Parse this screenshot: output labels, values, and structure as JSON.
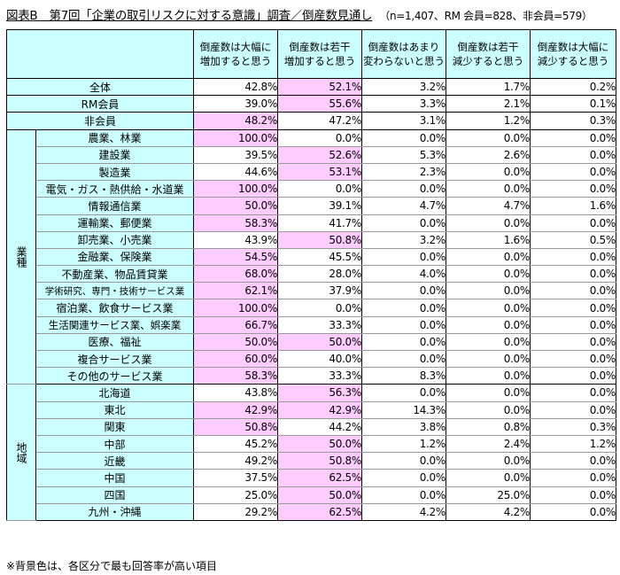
{
  "title": {
    "main": "図表B　第7回「企業の取引リスクに対する意識」調査／倒産数見通し",
    "sub": "（n=1,407、RM 会員=828、非会員=579）"
  },
  "columns": [
    {
      "line1": "倒産数は大幅に",
      "line2": "増加すると思う"
    },
    {
      "line1": "倒産数は若干",
      "line2": "増加すると思う"
    },
    {
      "line1": "倒産数はあまり",
      "line2": "変わらないと思う"
    },
    {
      "line1": "倒産数は若干",
      "line2": "減少すると思う"
    },
    {
      "line1": "倒産数は大幅に",
      "line2": "減少すると思う"
    }
  ],
  "summary": [
    {
      "label": "全体",
      "values": [
        "42.8%",
        "52.1%",
        "3.2%",
        "1.7%",
        "0.2%"
      ],
      "highlight": 1
    },
    {
      "label": "RM会員",
      "values": [
        "39.0%",
        "55.6%",
        "3.3%",
        "2.1%",
        "0.1%"
      ],
      "highlight": 1
    },
    {
      "label": "非会員",
      "values": [
        "48.2%",
        "47.2%",
        "3.1%",
        "1.2%",
        "0.3%"
      ],
      "highlight": 0
    }
  ],
  "industry": {
    "category": "業種",
    "rows": [
      {
        "label": "農業、林業",
        "values": [
          "100.0%",
          "0.0%",
          "0.0%",
          "0.0%",
          "0.0%"
        ],
        "highlight": [
          0
        ]
      },
      {
        "label": "建設業",
        "values": [
          "39.5%",
          "52.6%",
          "5.3%",
          "2.6%",
          "0.0%"
        ],
        "highlight": [
          1
        ]
      },
      {
        "label": "製造業",
        "values": [
          "44.6%",
          "53.1%",
          "2.3%",
          "0.0%",
          "0.0%"
        ],
        "highlight": [
          1
        ]
      },
      {
        "label": "電気・ガス・熱供給・水道業",
        "values": [
          "100.0%",
          "0.0%",
          "0.0%",
          "0.0%",
          "0.0%"
        ],
        "highlight": [
          0
        ]
      },
      {
        "label": "情報通信業",
        "values": [
          "50.0%",
          "39.1%",
          "4.7%",
          "4.7%",
          "1.6%"
        ],
        "highlight": [
          0
        ]
      },
      {
        "label": "運輸業、郵便業",
        "values": [
          "58.3%",
          "41.7%",
          "0.0%",
          "0.0%",
          "0.0%"
        ],
        "highlight": [
          0
        ]
      },
      {
        "label": "卸売業、小売業",
        "values": [
          "43.9%",
          "50.8%",
          "3.2%",
          "1.6%",
          "0.5%"
        ],
        "highlight": [
          1
        ]
      },
      {
        "label": "金融業、保険業",
        "values": [
          "54.5%",
          "45.5%",
          "0.0%",
          "0.0%",
          "0.0%"
        ],
        "highlight": [
          0
        ]
      },
      {
        "label": "不動産業、物品賃貸業",
        "values": [
          "68.0%",
          "28.0%",
          "4.0%",
          "0.0%",
          "0.0%"
        ],
        "highlight": [
          0
        ]
      },
      {
        "label": "学術研究、専門・技術サービス業",
        "values": [
          "62.1%",
          "37.9%",
          "0.0%",
          "0.0%",
          "0.0%"
        ],
        "highlight": [
          0
        ],
        "size": "small"
      },
      {
        "label": "宿泊業、飲食サービス業",
        "values": [
          "100.0%",
          "0.0%",
          "0.0%",
          "0.0%",
          "0.0%"
        ],
        "highlight": [
          0
        ]
      },
      {
        "label": "生活関連サービス業、娯楽業",
        "values": [
          "66.7%",
          "33.3%",
          "0.0%",
          "0.0%",
          "0.0%"
        ],
        "highlight": [
          0
        ],
        "size": "mid"
      },
      {
        "label": "医療、福祉",
        "values": [
          "50.0%",
          "50.0%",
          "0.0%",
          "0.0%",
          "0.0%"
        ],
        "highlight": [
          0,
          1
        ]
      },
      {
        "label": "複合サービス業",
        "values": [
          "60.0%",
          "40.0%",
          "0.0%",
          "0.0%",
          "0.0%"
        ],
        "highlight": [
          0
        ]
      },
      {
        "label": "その他のサービス業",
        "values": [
          "58.3%",
          "33.3%",
          "8.3%",
          "0.0%",
          "0.0%"
        ],
        "highlight": [
          0
        ]
      }
    ]
  },
  "region": {
    "category": "地域",
    "rows": [
      {
        "label": "北海道",
        "values": [
          "43.8%",
          "56.3%",
          "0.0%",
          "0.0%",
          "0.0%"
        ],
        "highlight": [
          1
        ]
      },
      {
        "label": "東北",
        "values": [
          "42.9%",
          "42.9%",
          "14.3%",
          "0.0%",
          "0.0%"
        ],
        "highlight": [
          0,
          1
        ]
      },
      {
        "label": "関東",
        "values": [
          "50.8%",
          "44.2%",
          "3.8%",
          "0.8%",
          "0.3%"
        ],
        "highlight": [
          0
        ]
      },
      {
        "label": "中部",
        "values": [
          "45.2%",
          "50.0%",
          "1.2%",
          "2.4%",
          "1.2%"
        ],
        "highlight": [
          1
        ]
      },
      {
        "label": "近畿",
        "values": [
          "49.2%",
          "50.8%",
          "0.0%",
          "0.0%",
          "0.0%"
        ],
        "highlight": [
          1
        ]
      },
      {
        "label": "中国",
        "values": [
          "37.5%",
          "62.5%",
          "0.0%",
          "0.0%",
          "0.0%"
        ],
        "highlight": [
          1
        ]
      },
      {
        "label": "四国",
        "values": [
          "25.0%",
          "50.0%",
          "0.0%",
          "25.0%",
          "0.0%"
        ],
        "highlight": [
          1
        ]
      },
      {
        "label": "九州・沖縄",
        "values": [
          "29.2%",
          "62.5%",
          "4.2%",
          "4.2%",
          "0.0%"
        ],
        "highlight": [
          1
        ]
      }
    ]
  },
  "note": "※背景色は、各区分で最も回答率が高い項目",
  "colors": {
    "header_bg": "#ccffff",
    "highlight_bg": "#ffccff",
    "cell_bg": "#ffffff"
  }
}
